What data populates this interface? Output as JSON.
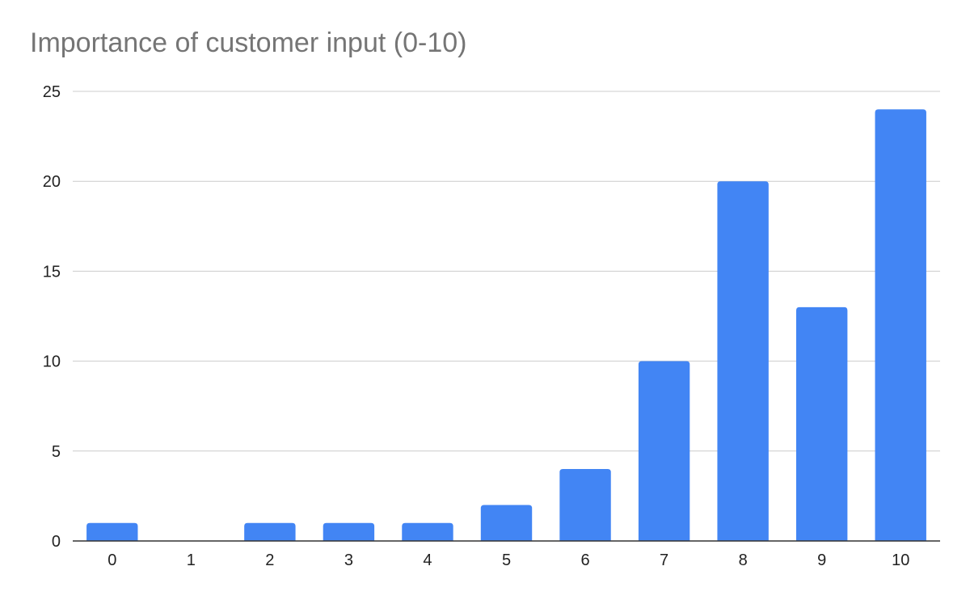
{
  "chart_data": {
    "type": "bar",
    "title": "Importance of customer input (0-10)",
    "xlabel": "",
    "ylabel": "",
    "categories": [
      "0",
      "1",
      "2",
      "3",
      "4",
      "5",
      "6",
      "7",
      "8",
      "9",
      "10"
    ],
    "values": [
      1,
      0,
      1,
      1,
      1,
      2,
      4,
      10,
      20,
      13,
      24
    ],
    "ylim": [
      0,
      25
    ],
    "yticks": [
      "0",
      "5",
      "10",
      "15",
      "20",
      "25"
    ],
    "grid": true,
    "legend": "none",
    "bar_color": "#4285F4",
    "title_color": "#757575",
    "grid_color": "#cccccc"
  }
}
